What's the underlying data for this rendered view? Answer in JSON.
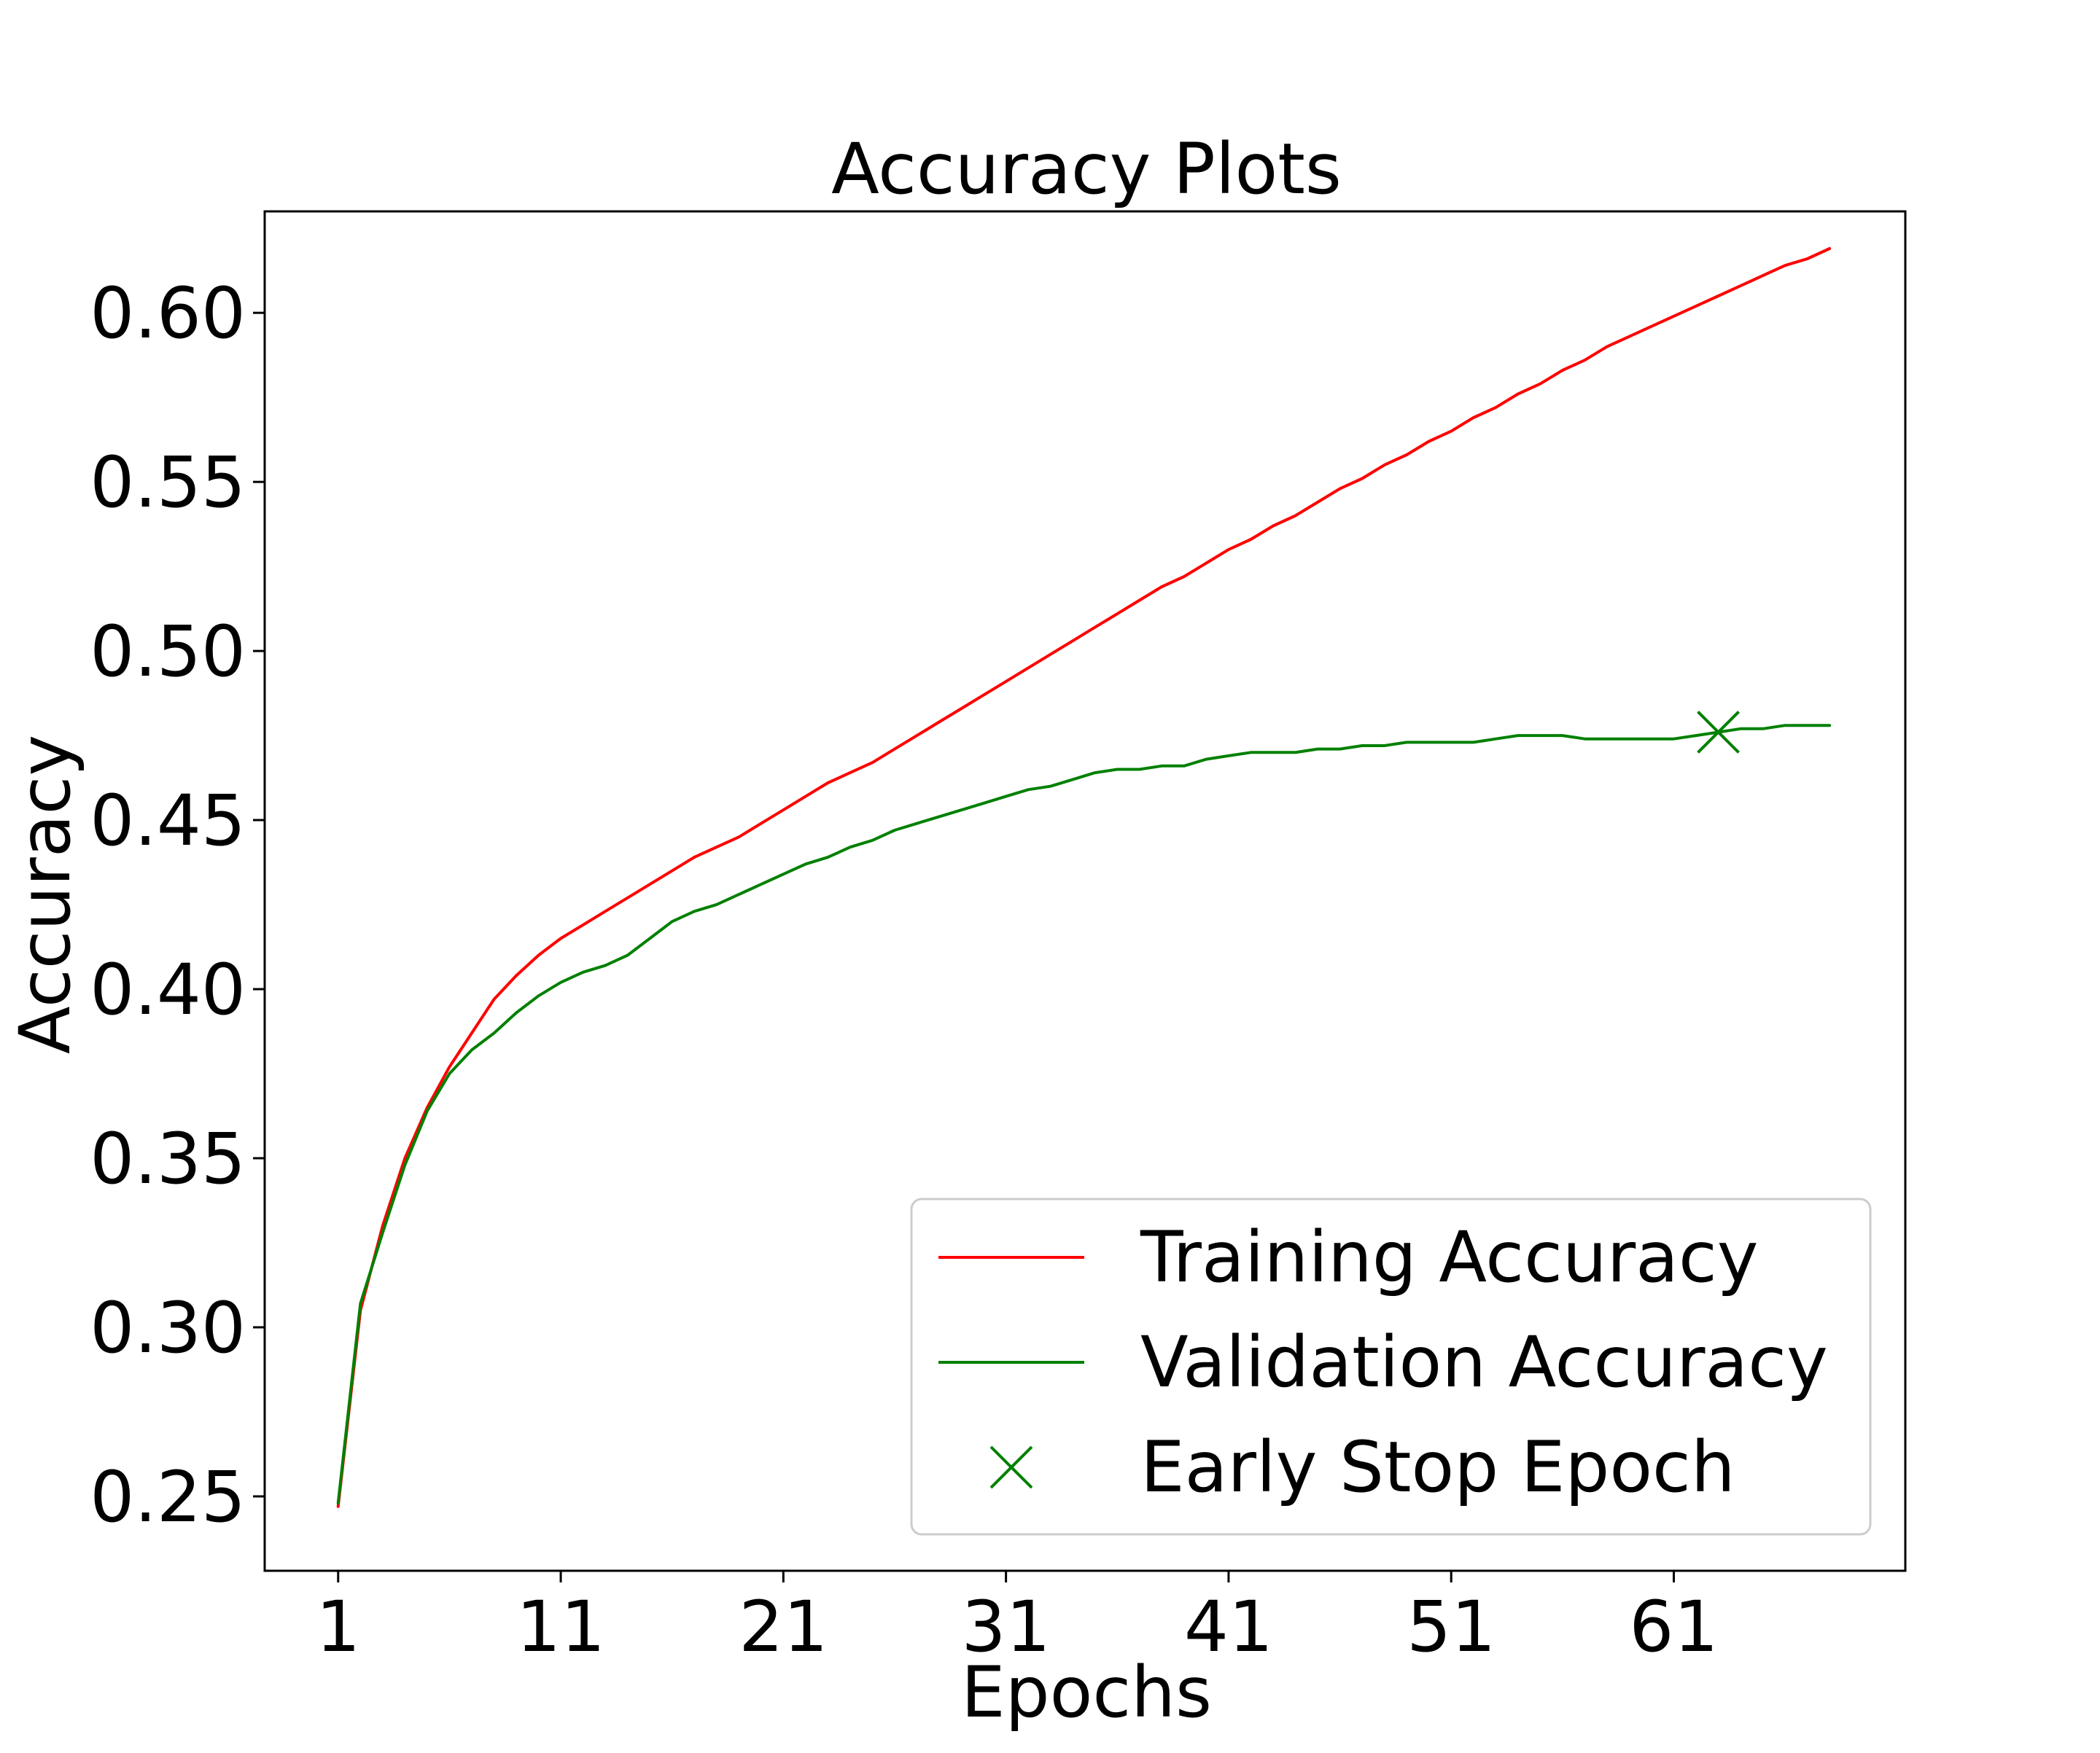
{
  "chart_data": {
    "type": "line",
    "title": "Accuracy Plots",
    "xlabel": "Epochs",
    "ylabel": "Accuracy",
    "xlim": [
      -2.3,
      71.4
    ],
    "ylim": [
      0.228,
      0.63
    ],
    "xticks": [
      1,
      11,
      21,
      31,
      41,
      51,
      61
    ],
    "yticks": [
      0.25,
      0.3,
      0.35,
      0.4,
      0.45,
      0.5,
      0.55,
      0.6
    ],
    "ytick_labels": [
      "0.25",
      "0.30",
      "0.35",
      "0.40",
      "0.45",
      "0.50",
      "0.55",
      "0.60"
    ],
    "grid": false,
    "legend_position": "lower right",
    "series": [
      {
        "name": "Training Accuracy",
        "color": "#ff0000",
        "x": [
          1,
          2,
          3,
          4,
          5,
          6,
          7,
          8,
          9,
          10,
          11,
          12,
          13,
          14,
          15,
          16,
          17,
          18,
          19,
          20,
          21,
          22,
          23,
          24,
          25,
          26,
          27,
          28,
          29,
          30,
          31,
          32,
          33,
          34,
          35,
          36,
          37,
          38,
          39,
          40,
          41,
          42,
          43,
          44,
          45,
          46,
          47,
          48,
          49,
          50,
          51,
          52,
          53,
          54,
          55,
          56,
          57,
          58,
          59,
          60,
          61,
          62,
          63,
          64,
          65,
          66,
          67,
          68
        ],
        "values": [
          0.247,
          0.305,
          0.33,
          0.35,
          0.365,
          0.377,
          0.387,
          0.397,
          0.404,
          0.41,
          0.415,
          0.419,
          0.423,
          0.427,
          0.431,
          0.435,
          0.439,
          0.442,
          0.445,
          0.449,
          0.453,
          0.457,
          0.461,
          0.464,
          0.467,
          0.471,
          0.475,
          0.479,
          0.483,
          0.487,
          0.491,
          0.495,
          0.499,
          0.503,
          0.507,
          0.511,
          0.515,
          0.519,
          0.522,
          0.526,
          0.53,
          0.533,
          0.537,
          0.54,
          0.544,
          0.548,
          0.551,
          0.555,
          0.558,
          0.562,
          0.565,
          0.569,
          0.572,
          0.576,
          0.579,
          0.583,
          0.586,
          0.59,
          0.593,
          0.596,
          0.599,
          0.602,
          0.605,
          0.608,
          0.611,
          0.614,
          0.616,
          0.619
        ]
      },
      {
        "name": "Validation Accuracy",
        "color": "#008000",
        "x": [
          1,
          2,
          3,
          4,
          5,
          6,
          7,
          8,
          9,
          10,
          11,
          12,
          13,
          14,
          15,
          16,
          17,
          18,
          19,
          20,
          21,
          22,
          23,
          24,
          25,
          26,
          27,
          28,
          29,
          30,
          31,
          32,
          33,
          34,
          35,
          36,
          37,
          38,
          39,
          40,
          41,
          42,
          43,
          44,
          45,
          46,
          47,
          48,
          49,
          50,
          51,
          52,
          53,
          54,
          55,
          56,
          57,
          58,
          59,
          60,
          61,
          62,
          63,
          64,
          65,
          66,
          67,
          68
        ],
        "values": [
          0.248,
          0.307,
          0.328,
          0.348,
          0.364,
          0.375,
          0.382,
          0.387,
          0.393,
          0.398,
          0.402,
          0.405,
          0.407,
          0.41,
          0.415,
          0.42,
          0.423,
          0.425,
          0.428,
          0.431,
          0.434,
          0.437,
          0.439,
          0.442,
          0.444,
          0.447,
          0.449,
          0.451,
          0.453,
          0.455,
          0.457,
          0.459,
          0.46,
          0.462,
          0.464,
          0.465,
          0.465,
          0.466,
          0.466,
          0.468,
          0.469,
          0.47,
          0.47,
          0.47,
          0.471,
          0.471,
          0.472,
          0.472,
          0.473,
          0.473,
          0.473,
          0.473,
          0.474,
          0.475,
          0.475,
          0.475,
          0.474,
          0.474,
          0.474,
          0.474,
          0.474,
          0.475,
          0.476,
          0.477,
          0.477,
          0.478,
          0.478,
          0.478
        ]
      }
    ],
    "markers": [
      {
        "name": "Early Stop Epoch",
        "x": 63,
        "y": 0.476,
        "color": "#008000",
        "shape": "x"
      }
    ]
  }
}
